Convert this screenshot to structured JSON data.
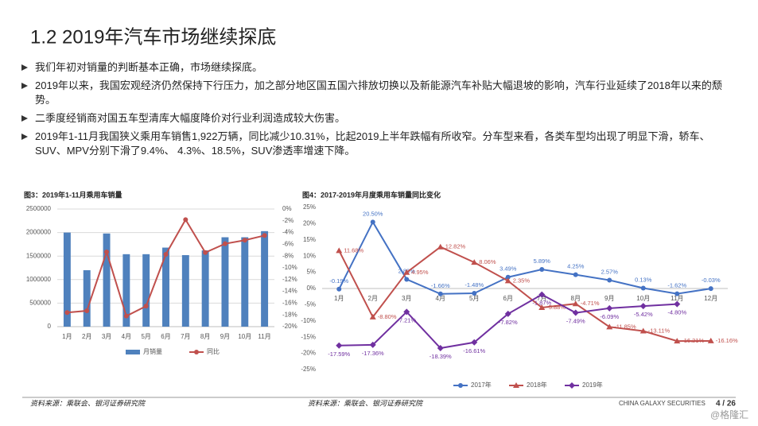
{
  "title": "1.2 2019年汽车市场继续探底",
  "bullets": [
    "我们年初对销量的判断基本正确，市场继续探底。",
    "2019年以来，我国宏观经济仍然保持下行压力，加之部分地区国五国六排放切换以及新能源汽车补贴大幅退坡的影响，汽车行业延续了2018年以来的颓势。",
    "二季度经销商对国五车型清库大幅度降价对行业利润造成较大伤害。",
    "2019年1-11月我国狭义乘用车销售1,922万辆，同比减少10.31%，比起2019上半年跌幅有所收窄。分车型来看，各类车型均出现了明显下滑，轿车、SUV、MPV分别下滑了9.4%、 4.3%、18.5%，SUV渗透率增速下降。"
  ],
  "chart_data": [
    {
      "type": "bar",
      "title": "图3：2019年1-11月乘用车销量",
      "categories": [
        "1月",
        "2月",
        "3月",
        "4月",
        "5月",
        "6月",
        "7月",
        "8月",
        "9月",
        "10月",
        "11月"
      ],
      "series": [
        {
          "name": "月销量",
          "color": "#4f81bd",
          "values": [
            2000000,
            1200000,
            1980000,
            1540000,
            1540000,
            1680000,
            1520000,
            1620000,
            1900000,
            1900000,
            2030000
          ]
        },
        {
          "name": "同比",
          "type": "line",
          "axis": "y2",
          "color": "#c0504d",
          "marker": "circle",
          "values": [
            -17.6,
            -17.3,
            -7.3,
            -18.2,
            -16.5,
            -7.7,
            -1.8,
            -7.4,
            -5.9,
            -5.3,
            -4.5
          ]
        }
      ],
      "ylim": [
        0,
        2500000
      ],
      "yticks": [
        0,
        500000,
        1000000,
        1500000,
        2000000,
        2500000
      ],
      "y2lim": [
        -20,
        0
      ],
      "y2ticks": [
        {
          "value": 0,
          "label": "0%"
        },
        {
          "value": -2,
          "label": "-2%"
        },
        {
          "value": -4,
          "label": "-4%"
        },
        {
          "value": -6,
          "label": "-6%"
        },
        {
          "value": -8,
          "label": "-8%"
        },
        {
          "value": -10,
          "label": "-10%"
        },
        {
          "value": -12,
          "label": "-12%"
        },
        {
          "value": -14,
          "label": "-14%"
        },
        {
          "value": -16,
          "label": "-16%"
        },
        {
          "value": -18,
          "label": "-18%"
        },
        {
          "value": -20,
          "label": "-20%"
        }
      ],
      "grid": true,
      "source": "资料来源：乘联会、银河证券研究院"
    },
    {
      "type": "line",
      "title": "图4：2017-2019年月度乘用车销量同比变化",
      "categories": [
        "1月",
        "2月",
        "3月",
        "4月",
        "5月",
        "6月",
        "7月",
        "8月",
        "9月",
        "10月",
        "11月",
        "12月"
      ],
      "series": [
        {
          "name": "2017年",
          "color": "#4472c4",
          "marker": "circle",
          "values": [
            -0.19,
            20.5,
            2.83,
            -1.66,
            -1.48,
            3.49,
            5.89,
            4.25,
            2.57,
            0.13,
            -1.62,
            -0.03
          ],
          "value_labels": [
            "-0.19%",
            "20.50%",
            "2.83%",
            "-1.66%",
            "-1.48%",
            "3.49%",
            "5.89%",
            "4.25%",
            "2.57%",
            "0.13%",
            "-1.62%",
            "-0.03%"
          ]
        },
        {
          "name": "2018年",
          "color": "#c0504d",
          "marker": "triangle",
          "values": [
            11.68,
            -8.8,
            4.95,
            12.82,
            8.06,
            2.35,
            -5.88,
            -4.71,
            -11.85,
            -13.11,
            -16.21,
            -16.16
          ],
          "value_labels": [
            "11.68%",
            "-8.80%",
            "4.95%",
            "12.82%",
            "8.06%",
            "2.35%",
            "-5.88%",
            "-4.71%",
            "-11.85%",
            "-13.11%",
            "-16.21%",
            "-16.16%"
          ]
        },
        {
          "name": "2019年",
          "color": "#7030a0",
          "marker": "diamond",
          "values": [
            -17.59,
            -17.36,
            -7.21,
            -18.39,
            -16.61,
            -7.82,
            -1.87,
            -7.49,
            -6.09,
            -5.42,
            -4.8,
            null
          ],
          "value_labels": [
            "-17.59%",
            "-17.36%",
            "-7.21%",
            "-18.39%",
            "-16.61%",
            "-7.82%",
            "-1.87%",
            "-7.49%",
            "-6.09%",
            "-5.42%",
            "-4.80%",
            null
          ]
        }
      ],
      "ylim": [
        -25,
        25
      ],
      "yticks": [
        {
          "value": 25,
          "label": "25%"
        },
        {
          "value": 20,
          "label": "20%"
        },
        {
          "value": 15,
          "label": "15%"
        },
        {
          "value": 10,
          "label": "10%"
        },
        {
          "value": 5,
          "label": "5%"
        },
        {
          "value": 0,
          "label": "0%"
        },
        {
          "value": -5,
          "label": "-5%"
        },
        {
          "value": -10,
          "label": "-10%"
        },
        {
          "value": -15,
          "label": "-15%"
        },
        {
          "value": -20,
          "label": "-20%"
        },
        {
          "value": -25,
          "label": "-25%"
        }
      ],
      "grid": false,
      "source": "资料来源：乘联会、银河证券研究院"
    }
  ],
  "footer": {
    "brand": "CHINA GALAXY SECURITIES",
    "page": "4 / 26",
    "watermark": "@格隆汇"
  }
}
